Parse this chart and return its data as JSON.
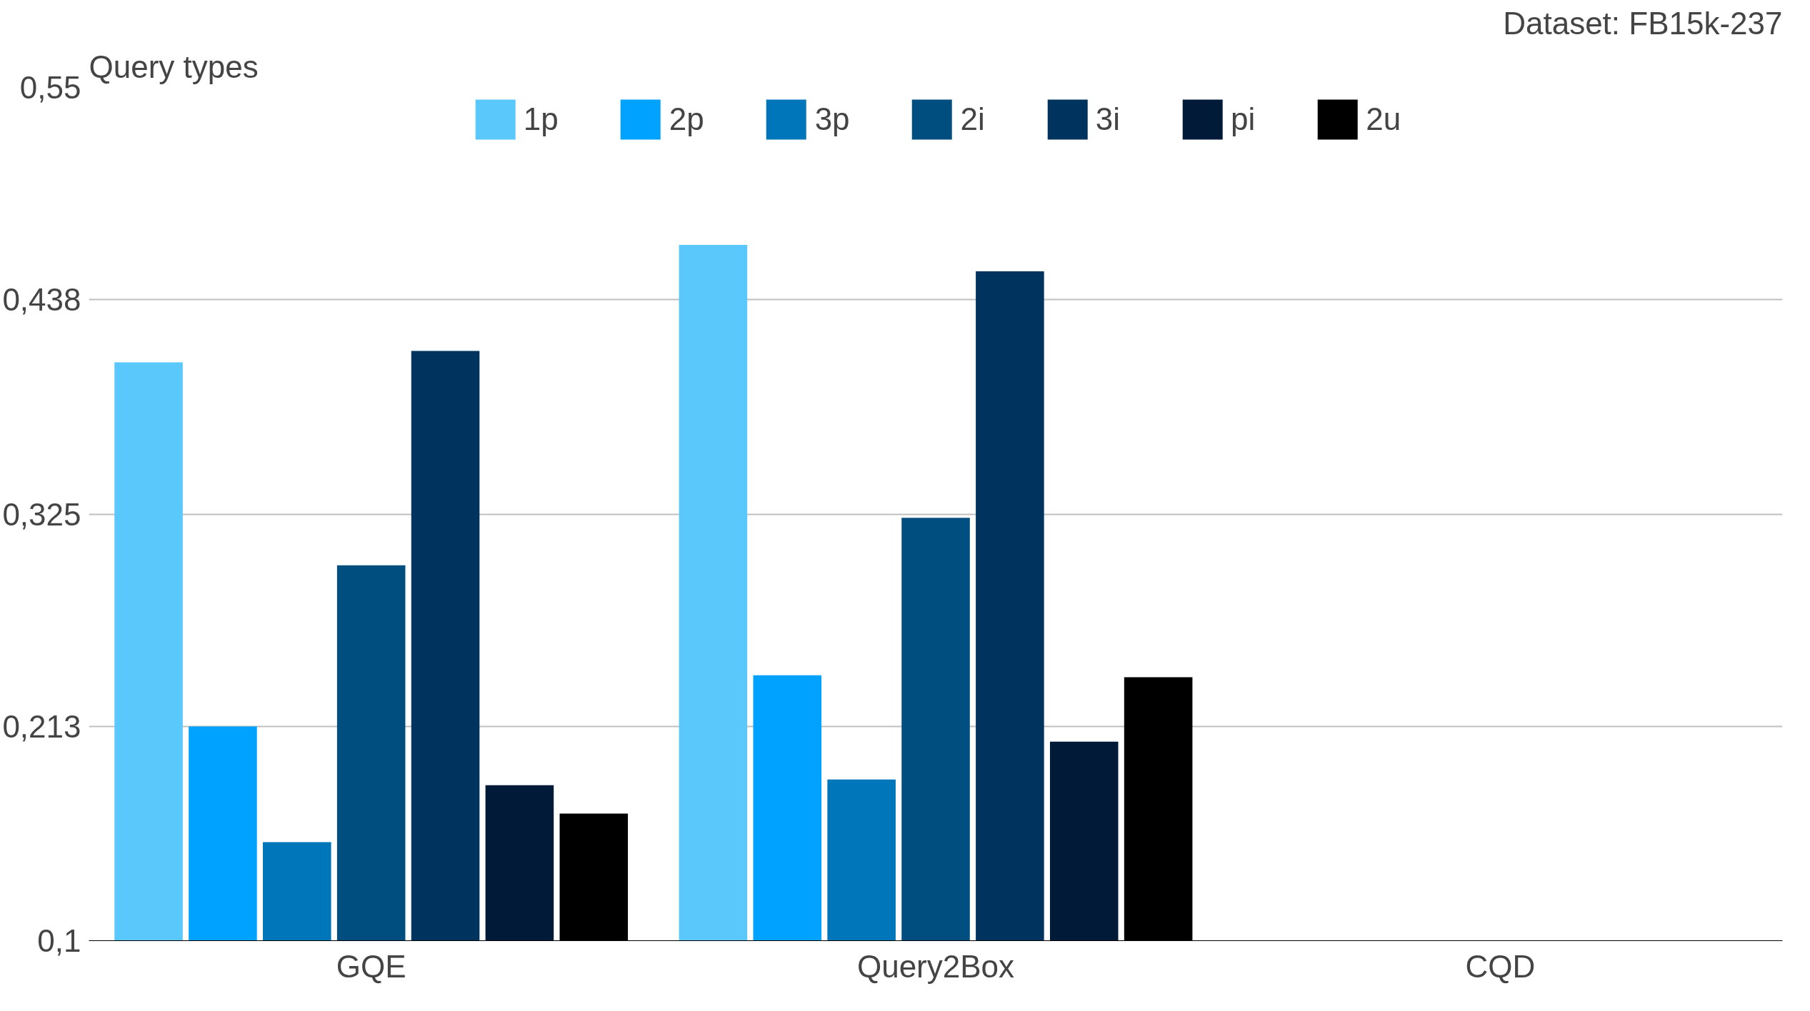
{
  "chart_data": {
    "type": "bar",
    "legend_title": "Query types",
    "annotations": [
      "Dataset: FB15k-237"
    ],
    "categories": [
      "GQE",
      "Query2Box",
      "CQD"
    ],
    "series": [
      {
        "name": "1p",
        "color": "#5ac8fa",
        "values": [
          0.405,
          0.467,
          null
        ]
      },
      {
        "name": "2p",
        "color": "#00a2ff",
        "values": [
          0.213,
          0.24,
          null
        ]
      },
      {
        "name": "3p",
        "color": "#0076ba",
        "values": [
          0.152,
          0.185,
          null
        ]
      },
      {
        "name": "2i",
        "color": "#004d80",
        "values": [
          0.298,
          0.323,
          null
        ]
      },
      {
        "name": "3i",
        "color": "#00345f",
        "values": [
          0.411,
          0.453,
          null
        ]
      },
      {
        "name": "pi",
        "color": "#011a38",
        "values": [
          0.182,
          0.205,
          null
        ]
      },
      {
        "name": "2u",
        "color": "#000000",
        "values": [
          0.167,
          0.239,
          null
        ]
      }
    ],
    "ylim": [
      0.1,
      0.55
    ],
    "yticks": [
      {
        "value": 0.1,
        "label": "0,1"
      },
      {
        "value": 0.213,
        "label": "0,213"
      },
      {
        "value": 0.325,
        "label": "0,325"
      },
      {
        "value": 0.438,
        "label": "0,438"
      },
      {
        "value": 0.55,
        "label": "0,55"
      }
    ],
    "grid": "y",
    "legend": "top"
  }
}
